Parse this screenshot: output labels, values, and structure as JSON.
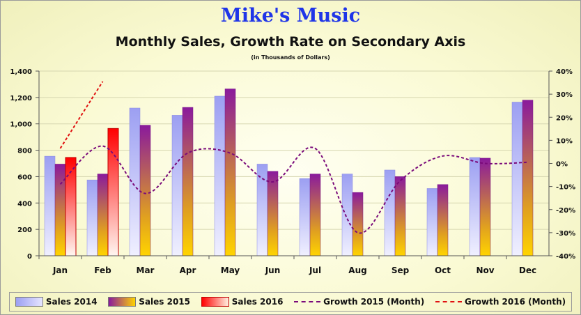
{
  "title": "Mike's Music",
  "subtitle": "Monthly Sales, Growth Rate on Secondary Axis",
  "note": "(in Thousands of Dollars)",
  "colors": {
    "sales_2014": "#a7aaf4",
    "sales_2015": "#8d1a9a",
    "sales_2016": "#ff1a1a",
    "growth_2015": "#7a0a7a",
    "growth_2016": "#e01010"
  },
  "chart_data": {
    "type": "bar",
    "categories": [
      "Jan",
      "Feb",
      "Mar",
      "Apr",
      "May",
      "Jun",
      "Jul",
      "Aug",
      "Sep",
      "Oct",
      "Nov",
      "Dec"
    ],
    "ylim": [
      0,
      1400
    ],
    "yticks": [
      "0",
      "200",
      "400",
      "600",
      "800",
      "1,000",
      "1,200",
      "1,400"
    ],
    "y2lim": [
      -40,
      40
    ],
    "y2ticks": [
      "-40%",
      "-30%",
      "-20%",
      "-10%",
      "0%",
      "10%",
      "20%",
      "30%",
      "40%"
    ],
    "legend_position": "bottom",
    "series": [
      {
        "name": "Sales 2014",
        "kind": "bar",
        "values": [
          755,
          575,
          1120,
          1065,
          1210,
          695,
          585,
          620,
          650,
          510,
          745,
          1165
        ]
      },
      {
        "name": "Sales 2015",
        "kind": "bar",
        "values": [
          695,
          620,
          990,
          1125,
          1265,
          640,
          620,
          480,
          600,
          540,
          740,
          1180
        ]
      },
      {
        "name": "Sales 2016",
        "kind": "bar",
        "values": [
          745,
          965,
          null,
          null,
          null,
          null,
          null,
          null,
          null,
          null,
          null,
          null
        ]
      },
      {
        "name": "Growth 2015 (Month)",
        "kind": "line",
        "axis": "secondary",
        "values": [
          -9,
          7.5,
          -13,
          4.5,
          4.5,
          -8,
          6.5,
          -30,
          -7.5,
          3.2,
          0,
          0.5
        ]
      },
      {
        "name": "Growth 2016 (Month)",
        "kind": "line",
        "axis": "secondary",
        "values": [
          6.5,
          35.5,
          null,
          null,
          null,
          null,
          null,
          null,
          null,
          null,
          null,
          null
        ]
      }
    ]
  }
}
